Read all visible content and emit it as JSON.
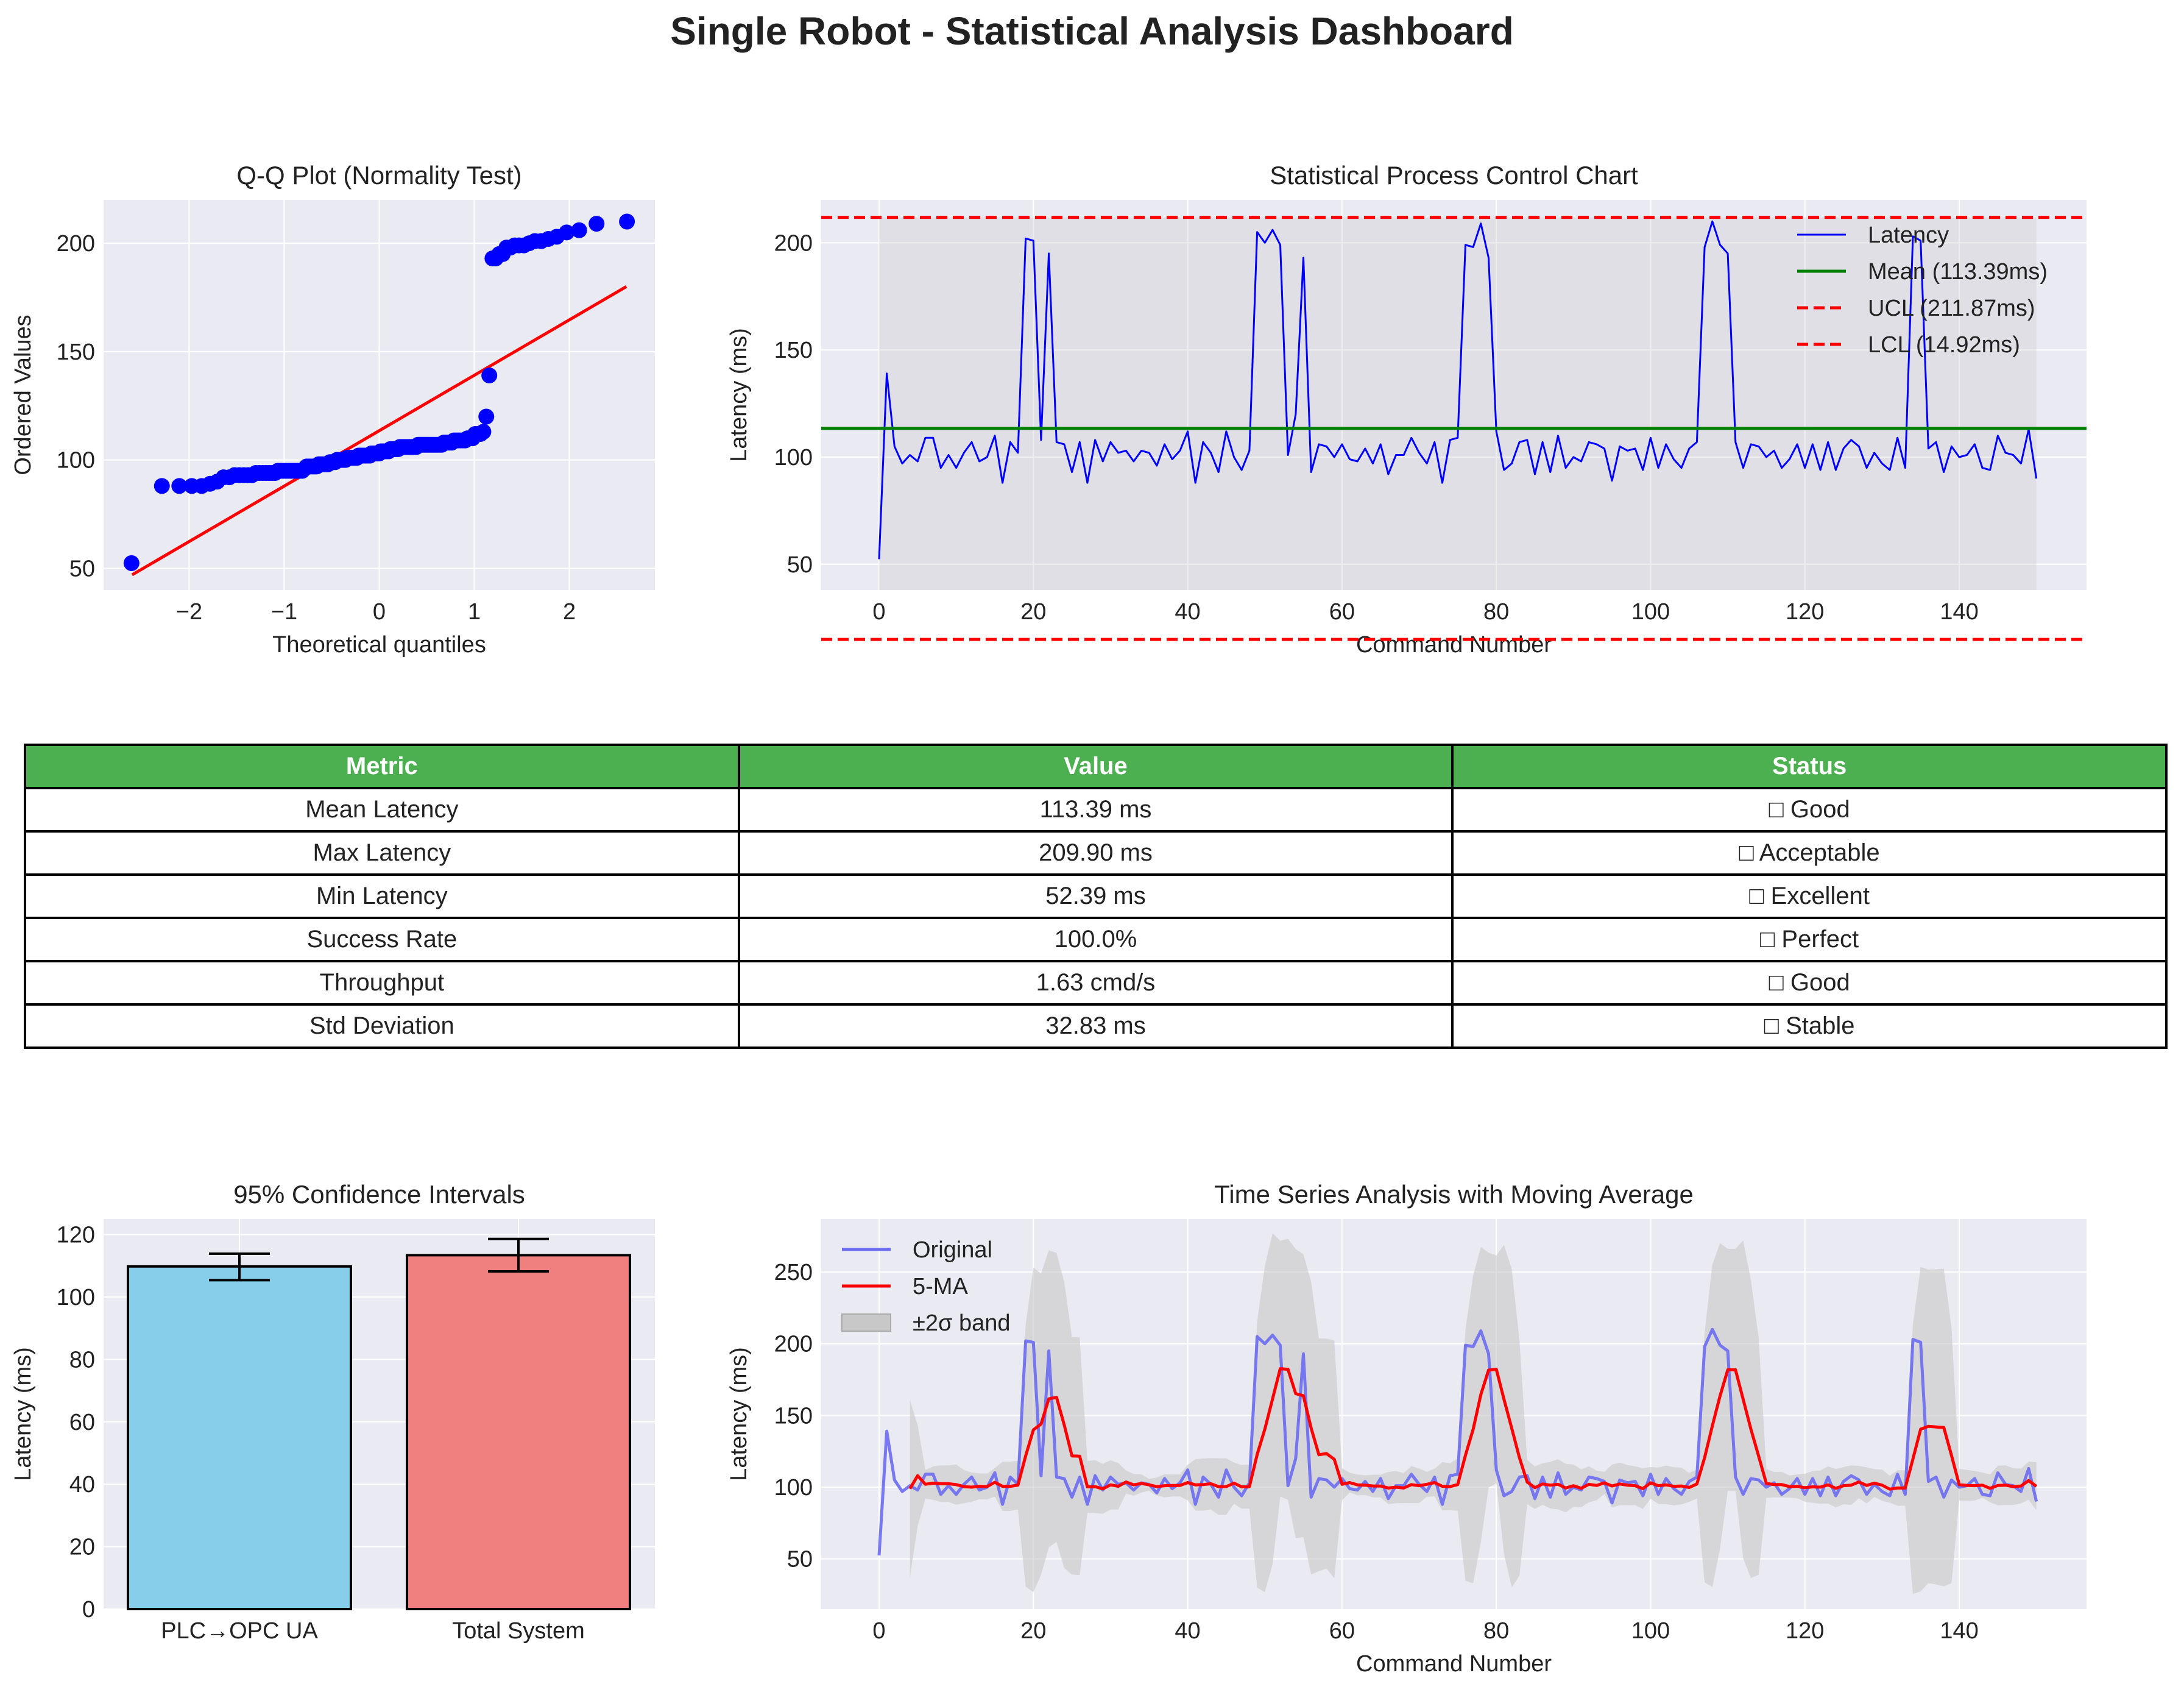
{
  "title": "Single Robot - Statistical Analysis Dashboard",
  "table": {
    "headers": [
      "Metric",
      "Value",
      "Status"
    ],
    "rows": [
      [
        "Mean Latency",
        "113.39 ms",
        "□ Good"
      ],
      [
        "Max Latency",
        "209.90 ms",
        "□ Acceptable"
      ],
      [
        "Min Latency",
        "52.39 ms",
        "□ Excellent"
      ],
      [
        "Success Rate",
        "100.0%",
        "□ Perfect"
      ],
      [
        "Throughput",
        "1.63 cmd/s",
        "□ Good"
      ],
      [
        "Std Deviation",
        "32.83 ms",
        "□ Stable"
      ]
    ]
  },
  "chart_data": [
    {
      "id": "qq",
      "type": "scatter",
      "title": "Q-Q Plot (Normality Test)",
      "xlabel": "Theoretical quantiles",
      "ylabel": "Ordered Values",
      "xlim": [
        -2.9,
        2.9
      ],
      "ylim": [
        40,
        220
      ],
      "xticks": [
        -2,
        -1,
        0,
        1,
        2
      ],
      "xtick_labels": [
        "−2",
        "−1",
        "0",
        "1",
        "2"
      ],
      "yticks": [
        50,
        100,
        150,
        200
      ],
      "grid": true,
      "fit_line": {
        "x": [
          -2.6,
          2.6
        ],
        "y": [
          47,
          180
        ]
      },
      "colors": {
        "points": "#0000ff",
        "line": "#ff0000"
      }
    },
    {
      "id": "spc",
      "type": "line",
      "title": "Statistical Process Control Chart",
      "xlabel": "Command Number",
      "ylabel": "Latency (ms)",
      "xlim": [
        -7.5,
        156.5
      ],
      "ylim": [
        38,
        220
      ],
      "xticks": [
        0,
        20,
        40,
        60,
        80,
        100,
        120,
        140
      ],
      "yticks": [
        50,
        100,
        150,
        200
      ],
      "grid": true,
      "legend": "top-right",
      "mean": 113.39,
      "ucl": 211.87,
      "lcl": 14.92,
      "series": [
        {
          "name": "Latency",
          "color": "#0000ff"
        },
        {
          "name": "Mean (113.39ms)",
          "color": "#008000"
        },
        {
          "name": "UCL (211.87ms)",
          "color": "#ff0000"
        },
        {
          "name": "LCL (14.92ms)",
          "color": "#ff0000"
        }
      ]
    },
    {
      "id": "ci",
      "type": "bar",
      "title": "95% Confidence Intervals",
      "ylabel": "Latency (ms)",
      "categories": [
        "PLC→OPC UA",
        "Total System"
      ],
      "values": [
        109.8,
        113.4
      ],
      "err_low": [
        105.4,
        108.2
      ],
      "err_high": [
        113.9,
        118.6
      ],
      "colors": [
        "#87ceeb",
        "#f08080"
      ],
      "ylim": [
        0,
        125
      ],
      "yticks": [
        0,
        20,
        40,
        60,
        80,
        100,
        120
      ],
      "grid": true
    },
    {
      "id": "ts",
      "type": "line",
      "title": "Time Series Analysis with Moving Average",
      "xlabel": "Command Number",
      "ylabel": "Latency (ms)",
      "xlim": [
        -7.5,
        156.5
      ],
      "ylim": [
        15,
        287
      ],
      "xticks": [
        0,
        20,
        40,
        60,
        80,
        100,
        120,
        140
      ],
      "yticks": [
        50,
        100,
        150,
        200,
        250
      ],
      "grid": true,
      "legend": "top-left",
      "series": [
        {
          "name": "Original",
          "color": "#6b6bef"
        },
        {
          "name": "5-MA",
          "color": "#ff0000"
        },
        {
          "name": "±2σ band",
          "color": "#c8c8c8"
        }
      ]
    }
  ],
  "latency": [
    52.39,
    139,
    105,
    97,
    101,
    98,
    109,
    109,
    95,
    101,
    95,
    102,
    107,
    98,
    100,
    110,
    88,
    107,
    102,
    202,
    201,
    108,
    195,
    107,
    106,
    93,
    107,
    88,
    108,
    98,
    107,
    102,
    103,
    98,
    103,
    102,
    96,
    106,
    99,
    103,
    112,
    88,
    107,
    102,
    93,
    112,
    100,
    94,
    103,
    205,
    200,
    206,
    199,
    101,
    120,
    193,
    93,
    106,
    105,
    100,
    106,
    99,
    98,
    104,
    97,
    106,
    92,
    101,
    101,
    109,
    102,
    97,
    107,
    88,
    108,
    109,
    199,
    198,
    209,
    193,
    112,
    94,
    97,
    107,
    108,
    92,
    107,
    93,
    110,
    95,
    100,
    98,
    107,
    106,
    104,
    89,
    105,
    103,
    104,
    94,
    109,
    95,
    106,
    99,
    95,
    104,
    107,
    198,
    210,
    199,
    195,
    107,
    95,
    106,
    105,
    100,
    103,
    95,
    99,
    106,
    95,
    106,
    94,
    107,
    94,
    104,
    108,
    105,
    95,
    102,
    97,
    94,
    109,
    95,
    203,
    201,
    104,
    107,
    93,
    105,
    100,
    101,
    106,
    95,
    94,
    110,
    102,
    101,
    97,
    113,
    90
  ]
}
